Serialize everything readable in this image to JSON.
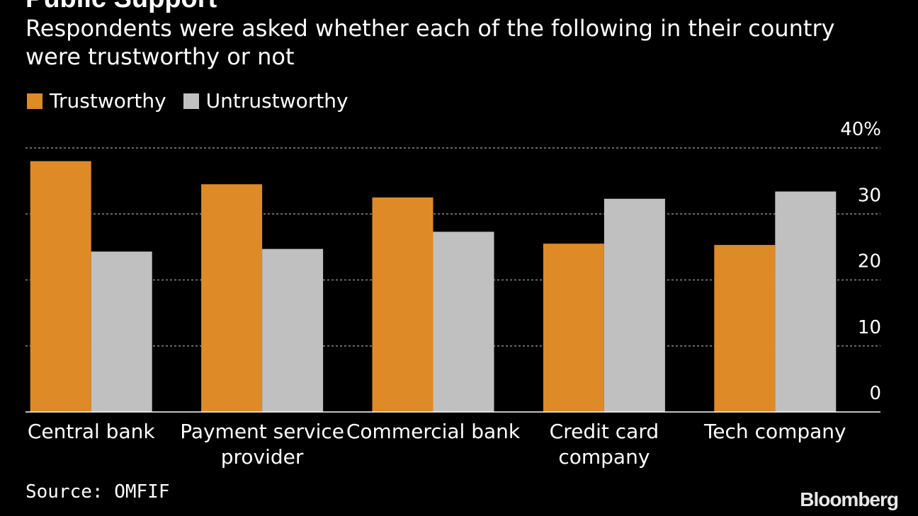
{
  "chart_data": {
    "type": "bar",
    "title": "Public Support",
    "subtitle": "Respondents were asked whether each of the following in their country were trustworthy or not",
    "categories": [
      "Central bank",
      "Payment service provider",
      "Commercial bank",
      "Credit card company",
      "Tech company"
    ],
    "category_lines": [
      [
        "Central bank"
      ],
      [
        "Payment service",
        "provider"
      ],
      [
        "Commercial bank"
      ],
      [
        "Credit card",
        "company"
      ],
      [
        "Tech company"
      ]
    ],
    "series": [
      {
        "name": "Trustworthy",
        "color": "#DD8A27",
        "values": [
          38,
          34.5,
          32.5,
          25.5,
          25.3
        ]
      },
      {
        "name": "Untrustworthy",
        "color": "#C0C0C0",
        "values": [
          24.3,
          24.7,
          27.3,
          32.3,
          33.4
        ]
      }
    ],
    "ylim": [
      0,
      40
    ],
    "yticks": [
      0,
      10,
      20,
      30,
      40
    ],
    "ytick_labels": [
      "0",
      "10",
      "20",
      "30",
      "40%"
    ],
    "y_axis_side": "right",
    "grid": true,
    "legend_position": "top-left"
  },
  "source": "Source: OMFIF",
  "brand": "Bloomberg"
}
